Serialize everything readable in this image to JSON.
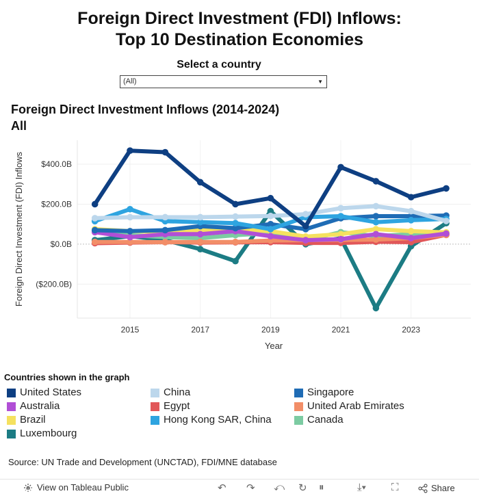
{
  "page": {
    "title_line1": "Foreign Direct Investment (FDI) Inflows:",
    "title_line2": "Top 10 Destination Economies"
  },
  "filter": {
    "label": "Select a country",
    "selected": "(All)"
  },
  "chart_header": {
    "line1": "Foreign Direct Investment Inflows (2014-2024)",
    "line2": "All"
  },
  "legend_title": "Countries shown in the graph",
  "source": "Source: UN Trade and Development (UNCTAD), FDI/MNE database",
  "toolbar": {
    "view_label": "View on Tableau Public",
    "share_label": "Share"
  },
  "chart_data": {
    "type": "line",
    "xlabel": "Year",
    "ylabel": "Foreign Direct Investment (FDI) Inflows",
    "x": [
      2014,
      2015,
      2016,
      2017,
      2018,
      2019,
      2020,
      2021,
      2022,
      2023,
      2024
    ],
    "x_ticks": [
      2015,
      2017,
      2019,
      2021,
      2023
    ],
    "ylim": [
      -370,
      520
    ],
    "y_ticks": [
      {
        "value": 400,
        "label": "$400.0B"
      },
      {
        "value": 200,
        "label": "$200.0B"
      },
      {
        "value": 0,
        "label": "$0.0B"
      },
      {
        "value": -200,
        "label": "($200.0B)"
      }
    ],
    "grid": true,
    "legend_position": "bottom",
    "series": [
      {
        "name": "Luxembourg",
        "color": "#1c7c84",
        "values": [
          20,
          40,
          20,
          -25,
          -85,
          165,
          0,
          30,
          -320,
          -10,
          105
        ]
      },
      {
        "name": "Canada",
        "color": "#7ccba2",
        "values": [
          60,
          45,
          35,
          30,
          45,
          55,
          20,
          60,
          40,
          50,
          55
        ]
      },
      {
        "name": "Egypt",
        "color": "#e15759",
        "values": [
          5,
          8,
          10,
          8,
          9,
          10,
          6,
          6,
          12,
          10,
          47
        ]
      },
      {
        "name": "United Arab Emirates",
        "color": "#f28e68",
        "values": [
          11,
          11,
          10,
          11,
          11,
          18,
          20,
          21,
          23,
          30,
          46
        ]
      },
      {
        "name": "Brazil",
        "color": "#f5e15f",
        "values": [
          75,
          65,
          60,
          70,
          75,
          65,
          38,
          50,
          75,
          65,
          59
        ]
      },
      {
        "name": "Australia",
        "color": "#b14fd6",
        "values": [
          60,
          35,
          50,
          50,
          65,
          40,
          20,
          25,
          50,
          30,
          53
        ]
      },
      {
        "name": "Singapore",
        "color": "#1f6cb5",
        "values": [
          70,
          65,
          70,
          90,
          80,
          100,
          75,
          130,
          140,
          140,
          143
        ]
      },
      {
        "name": "Hong Kong SAR, China",
        "color": "#2ea4e0",
        "values": [
          115,
          175,
          115,
          110,
          105,
          75,
          135,
          140,
          110,
          120,
          126
        ]
      },
      {
        "name": "China",
        "color": "#bcd7ec",
        "values": [
          130,
          135,
          135,
          135,
          138,
          141,
          150,
          180,
          190,
          165,
          116
        ]
      },
      {
        "name": "United States",
        "color": "#0e3f82",
        "values": [
          200,
          468,
          460,
          310,
          200,
          230,
          90,
          385,
          315,
          235,
          279
        ]
      }
    ]
  },
  "legend": [
    {
      "name": "United States",
      "color": "#0e3f82"
    },
    {
      "name": "China",
      "color": "#bcd7ec"
    },
    {
      "name": "Singapore",
      "color": "#1f6cb5"
    },
    {
      "name": "Australia",
      "color": "#b14fd6"
    },
    {
      "name": "Egypt",
      "color": "#e15759"
    },
    {
      "name": "United Arab Emirates",
      "color": "#f28e68"
    },
    {
      "name": "Brazil",
      "color": "#f5e15f"
    },
    {
      "name": "Hong Kong SAR, China",
      "color": "#2ea4e0"
    },
    {
      "name": "Canada",
      "color": "#7ccba2"
    },
    {
      "name": "Luxembourg",
      "color": "#1c7c84"
    }
  ]
}
